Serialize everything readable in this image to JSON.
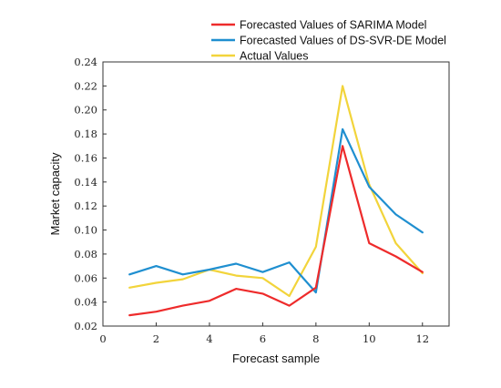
{
  "chart_data": {
    "type": "line",
    "title": "",
    "xlabel": "Forecast sample",
    "ylabel": "Market capacity",
    "xlim": [
      0,
      13
    ],
    "ylim": [
      0.02,
      0.24
    ],
    "x_ticks": [
      0,
      2,
      4,
      6,
      8,
      10,
      12
    ],
    "y_ticks": [
      0.02,
      0.04,
      0.06,
      0.08,
      0.1,
      0.12,
      0.14,
      0.16,
      0.18,
      0.2,
      0.22,
      0.24
    ],
    "x_tick_labels": [
      "0",
      "2",
      "4",
      "6",
      "8",
      "10",
      "12"
    ],
    "y_tick_labels": [
      "0.02",
      "0.04",
      "0.06",
      "0.08",
      "0.10",
      "0.12",
      "0.14",
      "0.16",
      "0.18",
      "0.20",
      "0.22",
      "0.24"
    ],
    "grid": false,
    "legend_position": "top-right",
    "x": [
      1,
      2,
      3,
      4,
      5,
      6,
      7,
      8,
      9,
      10,
      11,
      12
    ],
    "series": [
      {
        "name": "Forecasted Values of SARIMA Model",
        "color": "#ee2b2b",
        "values": [
          0.029,
          0.032,
          0.037,
          0.041,
          0.051,
          0.047,
          0.037,
          0.052,
          0.17,
          0.089,
          0.078,
          0.065
        ]
      },
      {
        "name": "Forecasted Values of DS-SVR-DE Model",
        "color": "#1f8fd0",
        "values": [
          0.063,
          0.07,
          0.063,
          0.067,
          0.072,
          0.065,
          0.073,
          0.048,
          0.184,
          0.136,
          0.113,
          0.098
        ]
      },
      {
        "name": "Actual Values",
        "color": "#f2d43b",
        "values": [
          0.052,
          0.056,
          0.059,
          0.067,
          0.062,
          0.06,
          0.045,
          0.086,
          0.22,
          0.138,
          0.089,
          0.064
        ]
      }
    ]
  }
}
